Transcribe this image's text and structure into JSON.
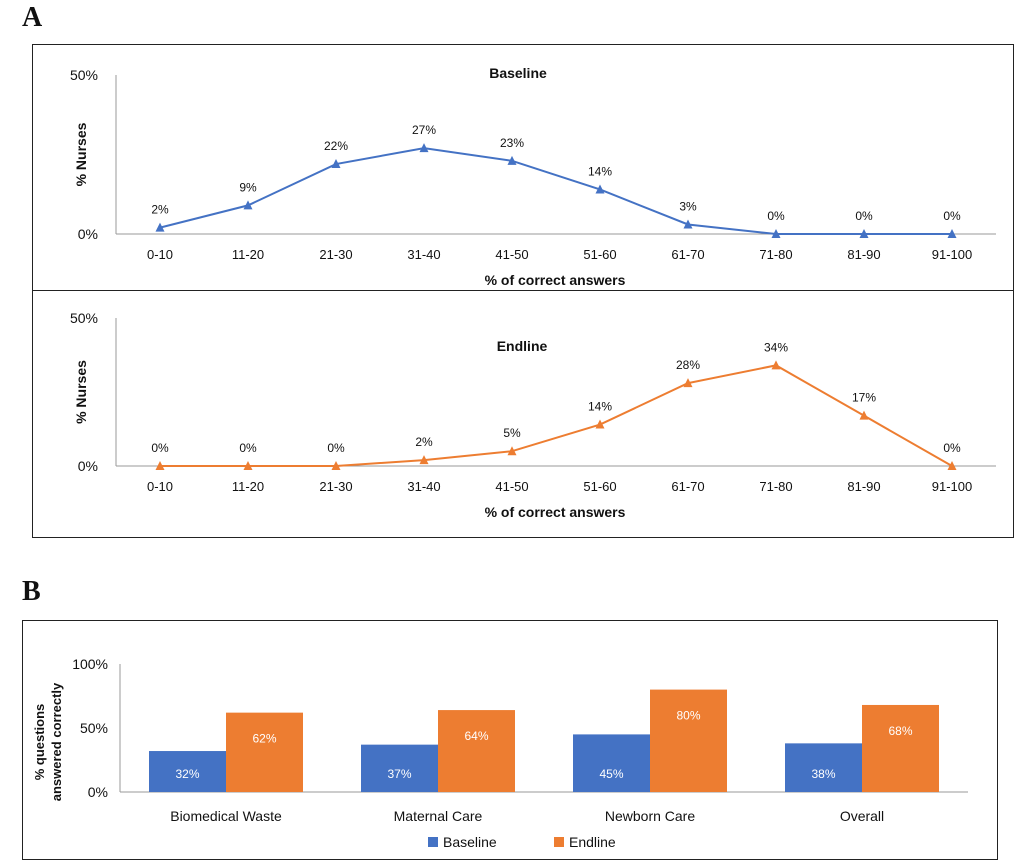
{
  "panels": {
    "a_label": "A",
    "b_label": "B"
  },
  "colors": {
    "baseline": "#4472C4",
    "endline": "#ED7D31",
    "axis": "#9a9a9a",
    "text": "#111111"
  },
  "chart_data": [
    {
      "type": "line",
      "title": "Baseline",
      "xlabel": "% of correct answers",
      "ylabel": "% Nurses",
      "ylim": [
        0,
        50
      ],
      "yticks": [
        "0%",
        "50%"
      ],
      "categories": [
        "0-10",
        "11-20",
        "21-30",
        "31-40",
        "41-50",
        "51-60",
        "61-70",
        "71-80",
        "81-90",
        "91-100"
      ],
      "series": [
        {
          "name": "Baseline",
          "values": [
            2,
            9,
            22,
            27,
            23,
            14,
            3,
            0,
            0,
            0
          ],
          "labels": [
            "2%",
            "9%",
            "22%",
            "27%",
            "23%",
            "14%",
            "3%",
            "0%",
            "0%",
            "0%"
          ]
        }
      ]
    },
    {
      "type": "line",
      "title": "Endline",
      "xlabel": "% of correct answers",
      "ylabel": "% Nurses",
      "ylim": [
        0,
        50
      ],
      "yticks": [
        "0%",
        "50%"
      ],
      "categories": [
        "0-10",
        "11-20",
        "21-30",
        "31-40",
        "41-50",
        "51-60",
        "61-70",
        "71-80",
        "81-90",
        "91-100"
      ],
      "series": [
        {
          "name": "Endline",
          "values": [
            0,
            0,
            0,
            2,
            5,
            14,
            28,
            34,
            17,
            0
          ],
          "labels": [
            "0%",
            "0%",
            "0%",
            "2%",
            "5%",
            "14%",
            "28%",
            "34%",
            "17%",
            "0%"
          ]
        }
      ]
    },
    {
      "type": "bar",
      "title": "",
      "xlabel": "",
      "ylabel_lines": [
        "% questions",
        "answered correctly"
      ],
      "ylim": [
        0,
        100
      ],
      "yticks": [
        "0%",
        "50%",
        "100%"
      ],
      "categories": [
        "Biomedical Waste",
        "Maternal Care",
        "Newborn Care",
        "Overall"
      ],
      "series": [
        {
          "name": "Baseline",
          "values": [
            32,
            37,
            45,
            38
          ],
          "labels": [
            "32%",
            "37%",
            "45%",
            "38%"
          ]
        },
        {
          "name": "Endline",
          "values": [
            62,
            64,
            80,
            68
          ],
          "labels": [
            "62%",
            "64%",
            "80%",
            "68%"
          ]
        }
      ],
      "legend": [
        "Baseline",
        "Endline"
      ],
      "legend_position": "bottom"
    }
  ]
}
